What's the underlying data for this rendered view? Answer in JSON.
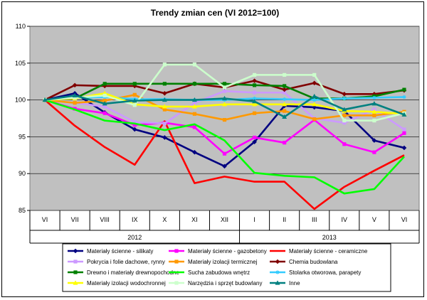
{
  "chart_data": {
    "type": "line",
    "title": "Trendy zmian cen (VI 2012=100)",
    "xlabel": "",
    "ylabel": "",
    "ylim": [
      85,
      110
    ],
    "yticks": [
      85,
      90,
      95,
      100,
      105,
      110
    ],
    "categories": [
      "VI",
      "VII",
      "VIII",
      "IX",
      "X",
      "XI",
      "XII",
      "I",
      "II",
      "III",
      "IV",
      "V",
      "VI"
    ],
    "year_groups": [
      {
        "label": "2012",
        "span": 7
      },
      {
        "label": "2013",
        "span": 6
      }
    ],
    "grid": true,
    "legend_position": "bottom",
    "series": [
      {
        "name": "Materiały ścienne - silikaty",
        "color": "#000080",
        "marker": "diamond",
        "values": [
          100,
          100.9,
          98.3,
          96,
          94.9,
          92.9,
          91,
          94.3,
          99.2,
          99,
          98.5,
          94.5,
          93.5
        ]
      },
      {
        "name": "Materiały ścienne - gazobetony",
        "color": "#ff00ff",
        "marker": "square",
        "values": [
          100,
          98.8,
          98.2,
          96.6,
          96.9,
          96.3,
          92.7,
          94.9,
          94.2,
          97.3,
          94,
          92.9,
          95.5
        ]
      },
      {
        "name": "Materiały ścienne - ceramiczne",
        "color": "#ff0000",
        "marker": "none",
        "values": [
          100,
          96.5,
          93.6,
          91.2,
          97.1,
          88.7,
          89.6,
          88.9,
          88.9,
          85.2,
          88.2,
          90.4,
          92.5
        ]
      },
      {
        "name": "Pokrycia i folie dachowe, rynny",
        "color": "#cc99ff",
        "marker": "square",
        "values": [
          100,
          99.6,
          99.1,
          97,
          96.8,
          99.6,
          101.2,
          101,
          101,
          97.5,
          96.9,
          98.7,
          96
        ]
      },
      {
        "name": "Materiały izolacji termicznej",
        "color": "#ff9900",
        "marker": "square",
        "values": [
          100,
          99.6,
          99.9,
          100.7,
          98.7,
          98.1,
          97.3,
          98.2,
          98.5,
          97.4,
          97.9,
          97.9,
          98.4
        ]
      },
      {
        "name": "Chemia budowlana",
        "color": "#800000",
        "marker": "diamond",
        "values": [
          100,
          102,
          101.9,
          101.9,
          100.9,
          102.2,
          101.7,
          102.6,
          101.4,
          102.3,
          100.8,
          100.8,
          101.3
        ]
      },
      {
        "name": "Drewno i materiały drewnopochodne",
        "color": "#008000",
        "marker": "square",
        "values": [
          100,
          100.2,
          102.2,
          102.2,
          102.2,
          102.2,
          102.2,
          102,
          101.9,
          100.2,
          100.2,
          100.5,
          101.4
        ]
      },
      {
        "name": "Sucha zabudowa wnętrz",
        "color": "#00ff00",
        "marker": "none",
        "values": [
          100,
          98.7,
          97.2,
          96.8,
          95.9,
          96.7,
          94.5,
          90.1,
          89.7,
          89.5,
          87.3,
          87.9,
          92.3
        ]
      },
      {
        "name": "Stolarka otworowa, parapety",
        "color": "#33ccff",
        "marker": "star",
        "values": [
          100,
          100.3,
          100.4,
          100.1,
          100.1,
          100,
          100,
          100.2,
          100.1,
          100,
          100.2,
          100.3,
          100.4
        ]
      },
      {
        "name": "Materiały izolacji wodochronnej",
        "color": "#ffff00",
        "marker": "triangle",
        "values": [
          100,
          100.2,
          100.9,
          99.4,
          99.1,
          99.1,
          99.4,
          99.4,
          99.4,
          99.4,
          98.5,
          98.4,
          98.1
        ]
      },
      {
        "name": "Narzędzia i sprzęt budowlany",
        "color": "#ccffcc",
        "marker": "square",
        "values": [
          100,
          100.3,
          100.6,
          99.3,
          104.8,
          104.8,
          101.7,
          103.4,
          103.4,
          103.4,
          97.2,
          97.2,
          98.2
        ]
      },
      {
        "name": "Inne",
        "color": "#008080",
        "marker": "triangle",
        "values": [
          100,
          100.6,
          99.5,
          99.9,
          100,
          100,
          100.2,
          99.8,
          97.7,
          100.5,
          98.7,
          99.5,
          98
        ]
      }
    ]
  }
}
